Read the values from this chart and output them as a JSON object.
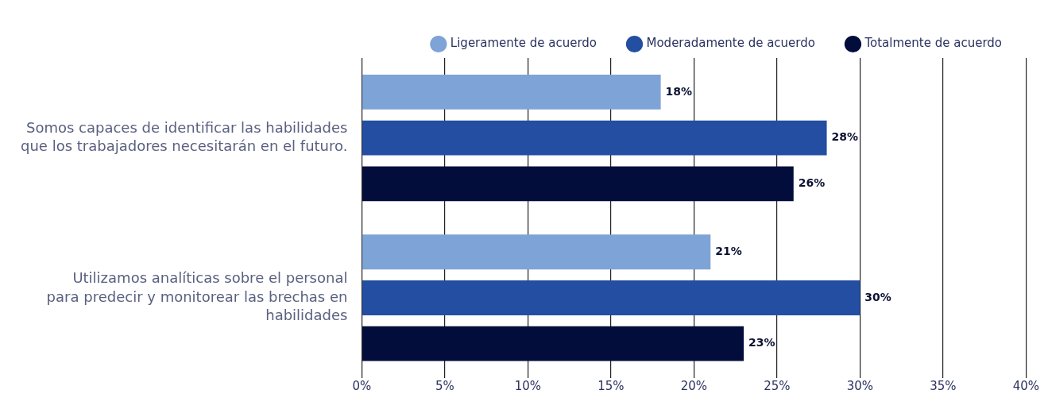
{
  "chart_data": {
    "type": "bar",
    "orientation": "horizontal",
    "categories": [
      "Somos capaces de identificar las habilidades\nque los trabajadores necesitarán en el futuro.",
      "Utilizamos analíticas sobre el personal\npara predecir y monitorear las brechas en\nhabilidades"
    ],
    "series": [
      {
        "name": "Ligeramente de acuerdo",
        "color": "#7ea3d6",
        "values": [
          18,
          21
        ],
        "value_labels": [
          "18%",
          "21%"
        ]
      },
      {
        "name": "Moderadamente de acuerdo",
        "color": "#234ea1",
        "values": [
          28,
          30
        ],
        "value_labels": [
          "28%",
          "30%"
        ]
      },
      {
        "name": "Totalmente de acuerdo",
        "color": "#020d3c",
        "values": [
          26,
          23
        ],
        "value_labels": [
          "26%",
          "23%"
        ]
      }
    ],
    "xlim": [
      0,
      40
    ],
    "xticks": [
      {
        "value": 0,
        "label": "0%"
      },
      {
        "value": 5,
        "label": "5%"
      },
      {
        "value": 10,
        "label": "10%"
      },
      {
        "value": 15,
        "label": "15%"
      },
      {
        "value": 20,
        "label": "20%"
      },
      {
        "value": 25,
        "label": "25%"
      },
      {
        "value": 30,
        "label": "30%"
      },
      {
        "value": 35,
        "label": "35%"
      },
      {
        "value": 40,
        "label": "40%"
      }
    ],
    "grid": "x",
    "legend": "top right",
    "marker": "circle"
  }
}
